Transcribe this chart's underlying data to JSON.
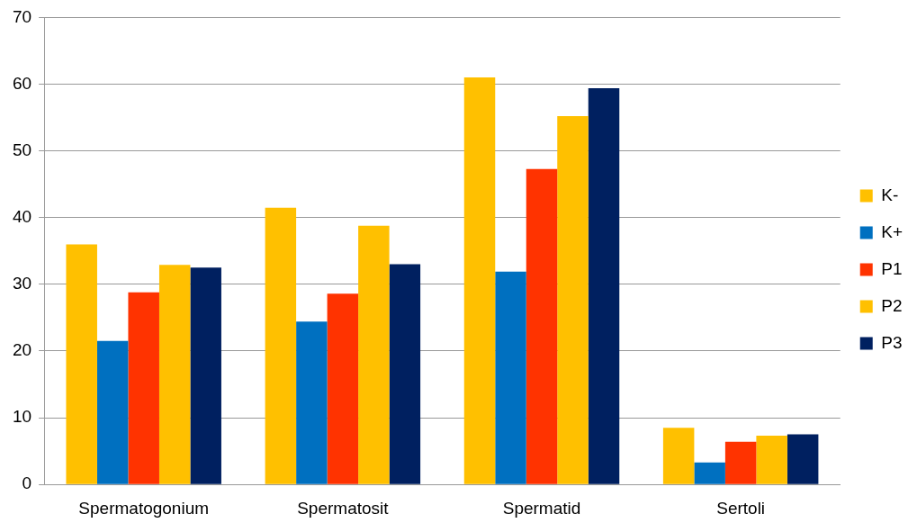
{
  "chart_data": {
    "type": "bar",
    "categories": [
      "Spermatogonium",
      "Spermatosit",
      "Spermatid",
      "Sertoli"
    ],
    "series": [
      {
        "name": "K-",
        "color": "#ffc000",
        "values": [
          36.0,
          41.5,
          61.0,
          8.5
        ]
      },
      {
        "name": "K+",
        "color": "#0070c0",
        "values": [
          21.5,
          24.4,
          31.9,
          3.3
        ]
      },
      {
        "name": "P1",
        "color": "#ff3300",
        "values": [
          28.8,
          28.6,
          47.3,
          6.4
        ]
      },
      {
        "name": "P2",
        "color": "#ffc000",
        "values": [
          32.9,
          38.8,
          55.2,
          7.3
        ]
      },
      {
        "name": "P3",
        "color": "#002060",
        "values": [
          32.5,
          33.0,
          59.4,
          7.5
        ]
      }
    ],
    "ylim": [
      0,
      70
    ],
    "yticks": [
      0,
      10,
      20,
      30,
      40,
      50,
      60,
      70
    ],
    "grid": "y",
    "legend": "right"
  }
}
